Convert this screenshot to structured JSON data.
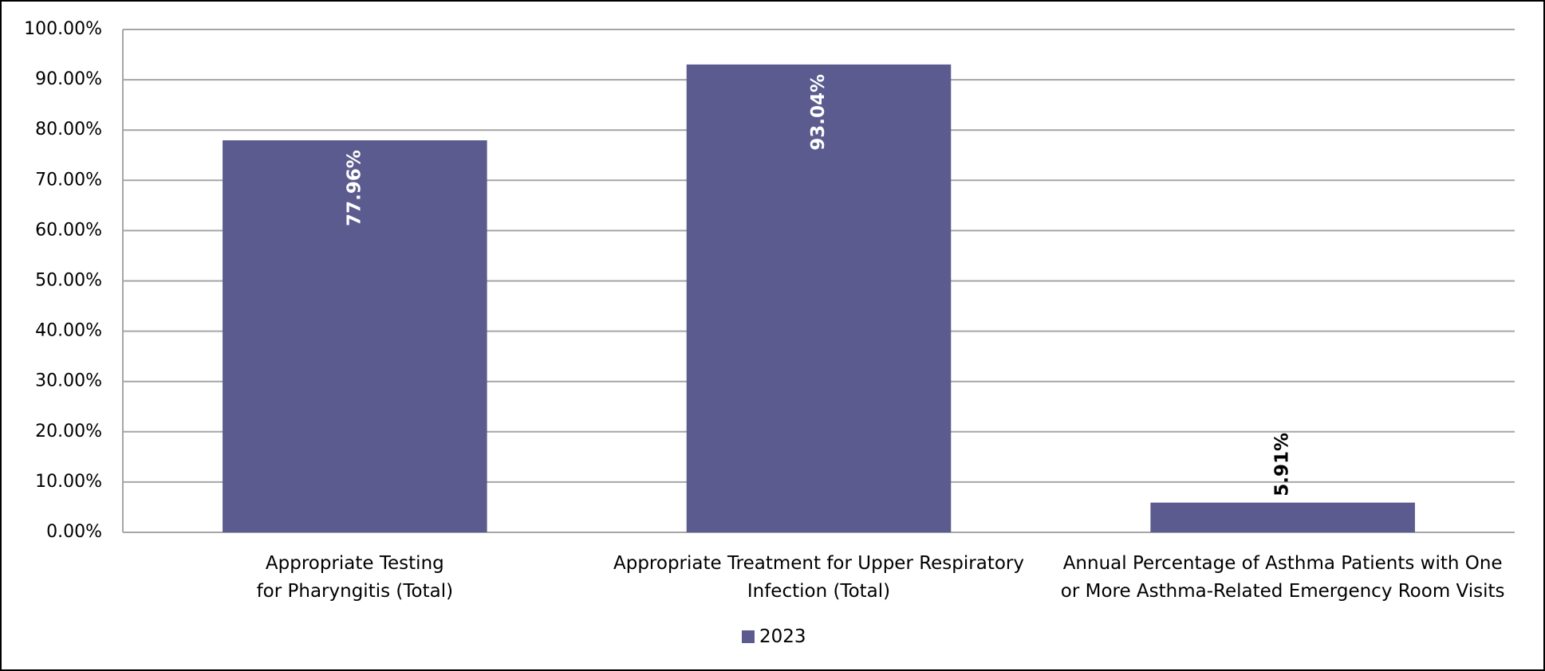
{
  "chart_data": {
    "type": "bar",
    "categories": [
      "Appropriate Testing\nfor Pharyngitis (Total)",
      "Appropriate Treatment for Upper Respiratory\nInfection (Total)",
      "Annual Percentage of Asthma Patients with One\nor More Asthma-Related Emergency Room Visits"
    ],
    "series": [
      {
        "name": "2023",
        "color": "#5b5b8f",
        "values": [
          77.96,
          93.04,
          5.91
        ],
        "value_labels": [
          "77.96%",
          "93.04%",
          "5.91%"
        ]
      }
    ],
    "ylim": [
      0,
      100
    ],
    "yticks": [
      {
        "value": 0,
        "label": "0.00%"
      },
      {
        "value": 10,
        "label": "10.00%"
      },
      {
        "value": 20,
        "label": "20.00%"
      },
      {
        "value": 30,
        "label": "30.00%"
      },
      {
        "value": 40,
        "label": "40.00%"
      },
      {
        "value": 50,
        "label": "50.00%"
      },
      {
        "value": 60,
        "label": "60.00%"
      },
      {
        "value": 70,
        "label": "70.00%"
      },
      {
        "value": 80,
        "label": "80.00%"
      },
      {
        "value": 90,
        "label": "90.00%"
      },
      {
        "value": 100,
        "label": "100.00%"
      }
    ],
    "grid": true,
    "legend": "bottom"
  }
}
